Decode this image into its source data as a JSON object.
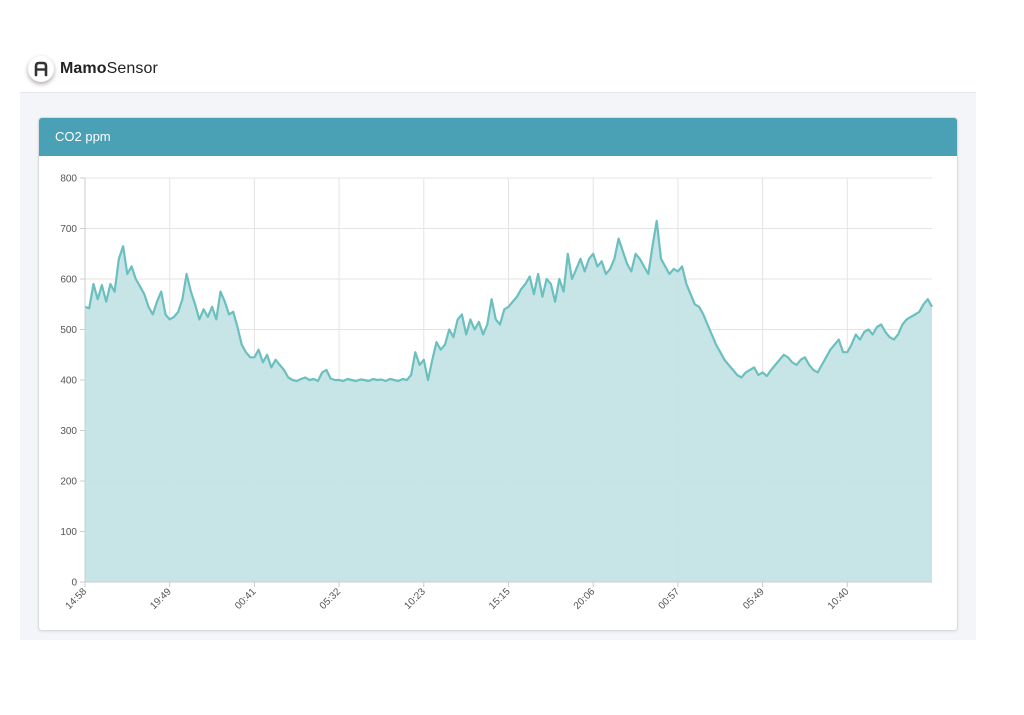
{
  "app": {
    "brand_bold": "Mamo",
    "brand_light": "Sensor",
    "logo_icon": "a-letter-icon"
  },
  "card": {
    "title": "CO2 ppm",
    "header_color": "#4aa0b5"
  },
  "chart_data": {
    "type": "area",
    "title": "CO2 ppm",
    "xlabel": "",
    "ylabel": "",
    "ylim": [
      0,
      800
    ],
    "yticks": [
      0,
      100,
      200,
      300,
      400,
      500,
      600,
      700,
      800
    ],
    "grid": true,
    "legend": "none",
    "line_color": "#6bbfbf",
    "fill_color": "#c4e4e5",
    "xlim": [
      0,
      400
    ],
    "xtick_labels": [
      {
        "x": 0,
        "label": "14:58"
      },
      {
        "x": 40,
        "label": "19:49"
      },
      {
        "x": 80,
        "label": "00:41"
      },
      {
        "x": 120,
        "label": "05:32"
      },
      {
        "x": 160,
        "label": "10:23"
      },
      {
        "x": 200,
        "label": "15:15"
      },
      {
        "x": 240,
        "label": "20:06"
      },
      {
        "x": 280,
        "label": "00:57"
      },
      {
        "x": 320,
        "label": "05:49"
      },
      {
        "x": 360,
        "label": "10:40"
      }
    ],
    "series": [
      {
        "values": [
          [
            0,
            545
          ],
          [
            2,
            542
          ],
          [
            4,
            590
          ],
          [
            6,
            560
          ],
          [
            8,
            588
          ],
          [
            10,
            555
          ],
          [
            12,
            590
          ],
          [
            14,
            575
          ],
          [
            16,
            640
          ],
          [
            18,
            665
          ],
          [
            20,
            610
          ],
          [
            22,
            625
          ],
          [
            24,
            600
          ],
          [
            26,
            585
          ],
          [
            28,
            570
          ],
          [
            30,
            545
          ],
          [
            32,
            530
          ],
          [
            34,
            555
          ],
          [
            36,
            575
          ],
          [
            38,
            530
          ],
          [
            40,
            520
          ],
          [
            42,
            525
          ],
          [
            44,
            535
          ],
          [
            46,
            560
          ],
          [
            48,
            610
          ],
          [
            50,
            575
          ],
          [
            52,
            550
          ],
          [
            54,
            520
          ],
          [
            56,
            540
          ],
          [
            58,
            525
          ],
          [
            60,
            545
          ],
          [
            62,
            520
          ],
          [
            64,
            575
          ],
          [
            66,
            555
          ],
          [
            68,
            530
          ],
          [
            70,
            535
          ],
          [
            72,
            505
          ],
          [
            74,
            470
          ],
          [
            76,
            455
          ],
          [
            78,
            445
          ],
          [
            80,
            445
          ],
          [
            82,
            460
          ],
          [
            84,
            435
          ],
          [
            86,
            450
          ],
          [
            88,
            425
          ],
          [
            90,
            440
          ],
          [
            92,
            430
          ],
          [
            94,
            420
          ],
          [
            96,
            405
          ],
          [
            98,
            400
          ],
          [
            100,
            398
          ],
          [
            102,
            402
          ],
          [
            104,
            405
          ],
          [
            106,
            400
          ],
          [
            108,
            402
          ],
          [
            110,
            398
          ],
          [
            112,
            415
          ],
          [
            114,
            420
          ],
          [
            116,
            403
          ],
          [
            118,
            400
          ],
          [
            120,
            400
          ],
          [
            122,
            398
          ],
          [
            124,
            402
          ],
          [
            126,
            400
          ],
          [
            128,
            398
          ],
          [
            130,
            401
          ],
          [
            132,
            400
          ],
          [
            134,
            398
          ],
          [
            136,
            402
          ],
          [
            138,
            400
          ],
          [
            140,
            401
          ],
          [
            142,
            398
          ],
          [
            144,
            402
          ],
          [
            146,
            400
          ],
          [
            148,
            398
          ],
          [
            150,
            402
          ],
          [
            152,
            400
          ],
          [
            154,
            410
          ],
          [
            156,
            455
          ],
          [
            158,
            430
          ],
          [
            160,
            440
          ],
          [
            162,
            400
          ],
          [
            164,
            440
          ],
          [
            166,
            475
          ],
          [
            168,
            460
          ],
          [
            170,
            470
          ],
          [
            172,
            500
          ],
          [
            174,
            485
          ],
          [
            176,
            520
          ],
          [
            178,
            530
          ],
          [
            180,
            490
          ],
          [
            182,
            520
          ],
          [
            184,
            500
          ],
          [
            186,
            515
          ],
          [
            188,
            490
          ],
          [
            190,
            510
          ],
          [
            192,
            560
          ],
          [
            194,
            520
          ],
          [
            196,
            510
          ],
          [
            198,
            540
          ],
          [
            200,
            545
          ],
          [
            202,
            555
          ],
          [
            204,
            565
          ],
          [
            206,
            580
          ],
          [
            208,
            590
          ],
          [
            210,
            605
          ],
          [
            212,
            570
          ],
          [
            214,
            610
          ],
          [
            216,
            565
          ],
          [
            218,
            600
          ],
          [
            220,
            590
          ],
          [
            222,
            555
          ],
          [
            224,
            600
          ],
          [
            226,
            575
          ],
          [
            228,
            650
          ],
          [
            230,
            600
          ],
          [
            232,
            620
          ],
          [
            234,
            640
          ],
          [
            236,
            615
          ],
          [
            238,
            640
          ],
          [
            240,
            650
          ],
          [
            242,
            625
          ],
          [
            244,
            635
          ],
          [
            246,
            610
          ],
          [
            248,
            620
          ],
          [
            250,
            640
          ],
          [
            252,
            680
          ],
          [
            254,
            655
          ],
          [
            256,
            630
          ],
          [
            258,
            615
          ],
          [
            260,
            650
          ],
          [
            262,
            640
          ],
          [
            264,
            625
          ],
          [
            266,
            610
          ],
          [
            268,
            665
          ],
          [
            270,
            715
          ],
          [
            272,
            640
          ],
          [
            274,
            625
          ],
          [
            276,
            610
          ],
          [
            278,
            620
          ],
          [
            280,
            615
          ],
          [
            282,
            625
          ],
          [
            284,
            590
          ],
          [
            286,
            570
          ],
          [
            288,
            550
          ],
          [
            290,
            545
          ],
          [
            292,
            530
          ],
          [
            294,
            510
          ],
          [
            296,
            490
          ],
          [
            298,
            470
          ],
          [
            300,
            455
          ],
          [
            302,
            440
          ],
          [
            304,
            430
          ],
          [
            306,
            420
          ],
          [
            308,
            410
          ],
          [
            310,
            405
          ],
          [
            312,
            415
          ],
          [
            314,
            420
          ],
          [
            316,
            425
          ],
          [
            318,
            410
          ],
          [
            320,
            415
          ],
          [
            322,
            408
          ],
          [
            324,
            420
          ],
          [
            326,
            430
          ],
          [
            328,
            440
          ],
          [
            330,
            450
          ],
          [
            332,
            445
          ],
          [
            334,
            435
          ],
          [
            336,
            430
          ],
          [
            338,
            440
          ],
          [
            340,
            445
          ],
          [
            342,
            430
          ],
          [
            344,
            420
          ],
          [
            346,
            415
          ],
          [
            348,
            430
          ],
          [
            350,
            445
          ],
          [
            352,
            460
          ],
          [
            354,
            470
          ],
          [
            356,
            480
          ],
          [
            358,
            455
          ],
          [
            360,
            455
          ],
          [
            362,
            470
          ],
          [
            364,
            490
          ],
          [
            366,
            480
          ],
          [
            368,
            495
          ],
          [
            370,
            500
          ],
          [
            372,
            490
          ],
          [
            374,
            505
          ],
          [
            376,
            510
          ],
          [
            378,
            495
          ],
          [
            380,
            485
          ],
          [
            382,
            480
          ],
          [
            384,
            490
          ],
          [
            386,
            510
          ],
          [
            388,
            520
          ],
          [
            390,
            525
          ],
          [
            392,
            530
          ],
          [
            394,
            535
          ],
          [
            396,
            550
          ],
          [
            398,
            560
          ],
          [
            400,
            545
          ]
        ]
      }
    ]
  }
}
